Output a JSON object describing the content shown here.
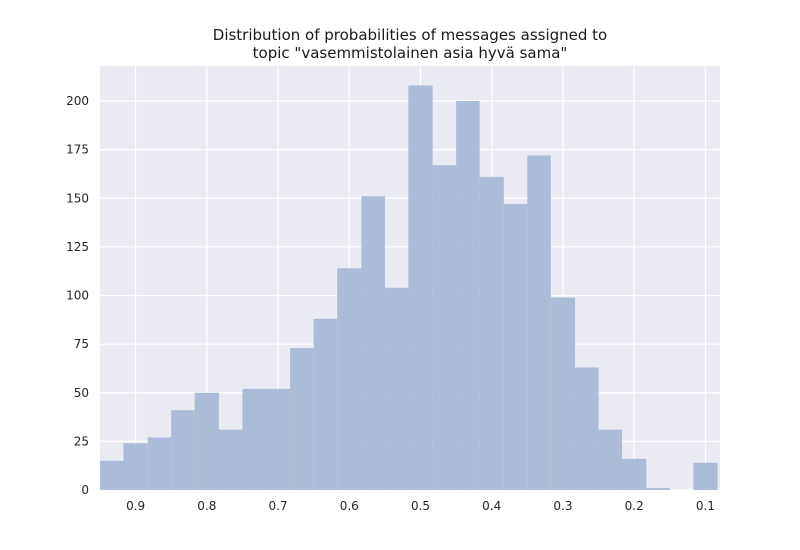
{
  "chart_data": {
    "type": "histogram",
    "title_lines": [
      "Distribution of probabilities of messages assigned to",
      "topic \"vasemmistolainen asia hyvä sama\""
    ],
    "xlabel": "",
    "ylabel": "",
    "x_inverted": true,
    "xlim": [
      0.95,
      0.0795
    ],
    "ylim": [
      0,
      218
    ],
    "x_ticks": [
      0.9,
      0.8,
      0.7,
      0.6,
      0.5,
      0.4,
      0.3,
      0.2,
      0.1
    ],
    "x_tick_labels": [
      "0.9",
      "0.8",
      "0.7",
      "0.6",
      "0.5",
      "0.4",
      "0.3",
      "0.2",
      "0.1"
    ],
    "y_ticks": [
      0,
      25,
      50,
      75,
      100,
      125,
      150,
      175,
      200
    ],
    "y_tick_labels": [
      "0",
      "25",
      "50",
      "75",
      "100",
      "125",
      "150",
      "175",
      "200"
    ],
    "grid": true,
    "bar_color": "#a9b8d6",
    "background_color": "#eaeaf2",
    "bins": [
      {
        "x_start": 0.95,
        "x_end": 0.917,
        "count": 15
      },
      {
        "x_start": 0.917,
        "x_end": 0.883,
        "count": 24
      },
      {
        "x_start": 0.883,
        "x_end": 0.85,
        "count": 27
      },
      {
        "x_start": 0.85,
        "x_end": 0.817,
        "count": 41
      },
      {
        "x_start": 0.817,
        "x_end": 0.783,
        "count": 50
      },
      {
        "x_start": 0.783,
        "x_end": 0.75,
        "count": 31
      },
      {
        "x_start": 0.75,
        "x_end": 0.717,
        "count": 52
      },
      {
        "x_start": 0.717,
        "x_end": 0.683,
        "count": 52
      },
      {
        "x_start": 0.683,
        "x_end": 0.65,
        "count": 73
      },
      {
        "x_start": 0.65,
        "x_end": 0.617,
        "count": 88
      },
      {
        "x_start": 0.617,
        "x_end": 0.583,
        "count": 114
      },
      {
        "x_start": 0.583,
        "x_end": 0.55,
        "count": 151
      },
      {
        "x_start": 0.55,
        "x_end": 0.517,
        "count": 104
      },
      {
        "x_start": 0.517,
        "x_end": 0.483,
        "count": 208
      },
      {
        "x_start": 0.483,
        "x_end": 0.45,
        "count": 167
      },
      {
        "x_start": 0.45,
        "x_end": 0.417,
        "count": 200
      },
      {
        "x_start": 0.417,
        "x_end": 0.383,
        "count": 161
      },
      {
        "x_start": 0.383,
        "x_end": 0.35,
        "count": 147
      },
      {
        "x_start": 0.35,
        "x_end": 0.317,
        "count": 172
      },
      {
        "x_start": 0.317,
        "x_end": 0.283,
        "count": 99
      },
      {
        "x_start": 0.283,
        "x_end": 0.25,
        "count": 63
      },
      {
        "x_start": 0.25,
        "x_end": 0.217,
        "count": 31
      },
      {
        "x_start": 0.217,
        "x_end": 0.183,
        "count": 16
      },
      {
        "x_start": 0.183,
        "x_end": 0.15,
        "count": 1
      },
      {
        "x_start": 0.15,
        "x_end": 0.117,
        "count": 0
      },
      {
        "x_start": 0.117,
        "x_end": 0.083,
        "count": 14
      }
    ]
  }
}
